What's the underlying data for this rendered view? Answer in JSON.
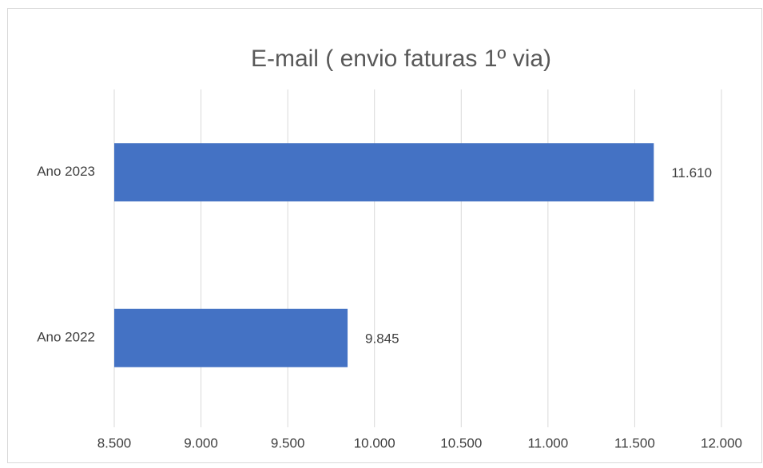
{
  "chart_data": {
    "type": "bar",
    "orientation": "horizontal",
    "title": "E-mail ( envio faturas 1º via)",
    "categories": [
      "Ano 2022",
      "Ano 2023"
    ],
    "values": [
      9845,
      11610
    ],
    "value_labels": [
      "9.845",
      "11.610"
    ],
    "color": "#4472c4",
    "xlim": [
      8500,
      12000
    ],
    "xticks": [
      {
        "value": 8500,
        "label": "8.500"
      },
      {
        "value": 9000,
        "label": "9.000"
      },
      {
        "value": 9500,
        "label": "9.500"
      },
      {
        "value": 10000,
        "label": "10.000"
      },
      {
        "value": 10500,
        "label": "10.500"
      },
      {
        "value": 11000,
        "label": "11.000"
      },
      {
        "value": 11500,
        "label": "11.500"
      },
      {
        "value": 12000,
        "label": "12.000"
      }
    ],
    "grid": true
  }
}
